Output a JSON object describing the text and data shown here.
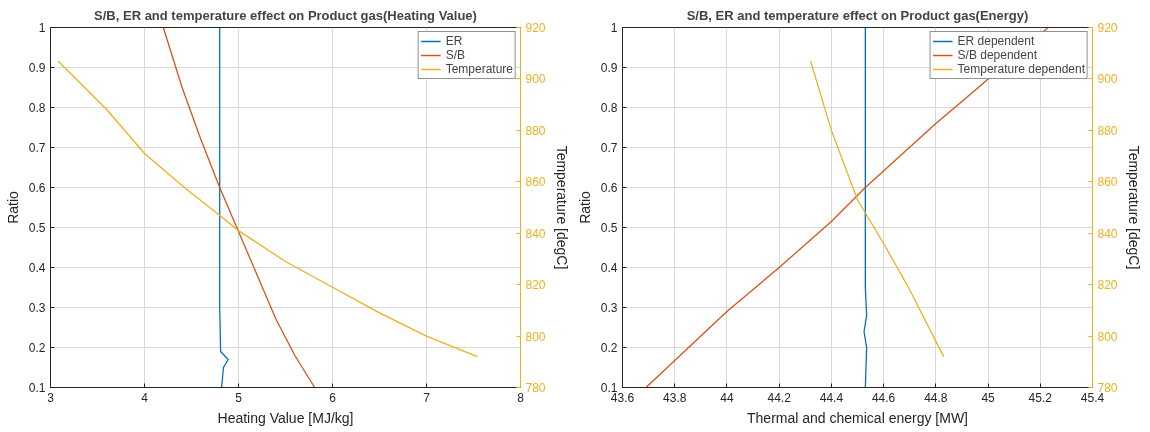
{
  "chart_data": [
    {
      "type": "line",
      "title": "S/B, ER and temperature effect on Product gas(Heating Value)",
      "xlabel": "Heating Value [MJ/kg]",
      "ylabel": "Ratio",
      "y2label": "Temperature [degC]",
      "xlim": [
        3,
        8
      ],
      "xticks": [
        3,
        4,
        5,
        6,
        7,
        8
      ],
      "ylim": [
        0.1,
        1
      ],
      "yticks": [
        0.1,
        0.2,
        0.3,
        0.4,
        0.5,
        0.6,
        0.7,
        0.8,
        0.9,
        1
      ],
      "y2lim": [
        780,
        920
      ],
      "y2ticks": [
        780,
        800,
        820,
        840,
        860,
        880,
        900,
        920
      ],
      "grid": true,
      "legend": "top right",
      "series": [
        {
          "name": "ER",
          "color": "#0072bd",
          "x": [
            4.82,
            4.84,
            4.89,
            4.81,
            4.8,
            4.8
          ],
          "values": [
            0.1,
            0.15,
            0.17,
            0.19,
            0.3,
            1.0
          ]
        },
        {
          "name": "S/B",
          "color": "#d95319",
          "x": [
            4.2,
            4.4,
            4.6,
            4.8,
            5.0,
            5.2,
            5.4,
            5.6,
            5.81
          ],
          "values": [
            1.0,
            0.85,
            0.72,
            0.6,
            0.49,
            0.38,
            0.27,
            0.18,
            0.1
          ]
        },
        {
          "name": "Temperature",
          "color": "#edb120",
          "axis": "y2",
          "x": [
            3.08,
            3.6,
            4.0,
            4.45,
            4.8,
            5.0,
            5.5,
            6.0,
            6.5,
            7.0,
            7.54
          ],
          "values": [
            907,
            888,
            871,
            857,
            847,
            841,
            829,
            819,
            809,
            800,
            792
          ]
        }
      ]
    },
    {
      "type": "line",
      "title": "S/B, ER and temperature effect on Product gas(Energy)",
      "xlabel": "Thermal and chemical energy [MW]",
      "ylabel": "Ratio",
      "y2label": "Temperature [degC]",
      "xlim": [
        43.6,
        45.4
      ],
      "xticks": [
        43.6,
        43.8,
        44,
        44.2,
        44.4,
        44.6,
        44.8,
        45,
        45.2,
        45.4
      ],
      "ylim": [
        0.1,
        1
      ],
      "yticks": [
        0.1,
        0.2,
        0.3,
        0.4,
        0.5,
        0.6,
        0.7,
        0.8,
        0.9,
        1
      ],
      "y2lim": [
        780,
        920
      ],
      "y2ticks": [
        780,
        800,
        820,
        840,
        860,
        880,
        900,
        920
      ],
      "grid": true,
      "legend": "top right",
      "series": [
        {
          "name": "ER dependent",
          "color": "#0072bd",
          "x": [
            44.53,
            44.535,
            44.525,
            44.535,
            44.53,
            44.53
          ],
          "values": [
            0.1,
            0.2,
            0.24,
            0.28,
            0.35,
            1.0
          ]
        },
        {
          "name": "S/B dependent",
          "color": "#d95319",
          "x": [
            43.69,
            44.0,
            44.2,
            44.4,
            44.53,
            44.8,
            44.9,
            45.23
          ],
          "values": [
            0.1,
            0.29,
            0.4,
            0.515,
            0.6,
            0.76,
            0.815,
            1.0
          ]
        },
        {
          "name": "Temperature dependent",
          "color": "#edb120",
          "axis": "y2",
          "x": [
            44.32,
            44.4,
            44.5,
            44.6,
            44.7,
            44.83
          ],
          "values": [
            907,
            880,
            853,
            836,
            818,
            792
          ]
        }
      ]
    }
  ]
}
